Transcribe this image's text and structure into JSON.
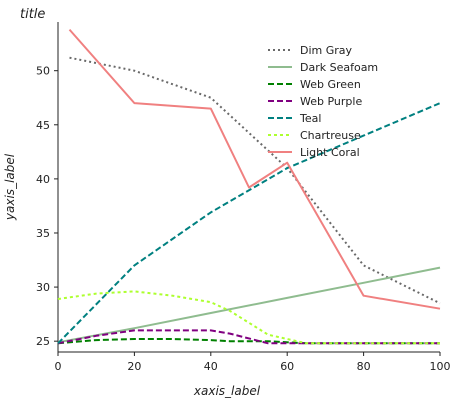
{
  "chart_data": {
    "type": "line",
    "title": "title",
    "xlabel": "xaxis_label",
    "ylabel": "yaxis_label",
    "xlim": [
      0,
      100
    ],
    "ylim": [
      24,
      54.5
    ],
    "xticks": [
      0,
      20,
      40,
      60,
      80,
      100
    ],
    "xtick_labels": [
      "0",
      "20",
      "40",
      "60",
      "80",
      "100"
    ],
    "yticks": [
      25,
      30,
      35,
      40,
      45,
      50
    ],
    "ytick_labels": [
      "25",
      "30",
      "35",
      "40",
      "45",
      "50"
    ],
    "grid": false,
    "legend_position": "top-right",
    "series": [
      {
        "name": "Dim Gray",
        "color": "#696969",
        "dash": "2,3",
        "width": 2,
        "x": [
          3,
          20,
          40,
          60,
          80,
          100
        ],
        "y": [
          51.2,
          50.0,
          47.5,
          41.0,
          32.0,
          28.5
        ]
      },
      {
        "name": "Dark Seafoam",
        "color": "#8fbc8f",
        "dash": "",
        "width": 2,
        "x": [
          0,
          20,
          40,
          60,
          80,
          100
        ],
        "y": [
          24.9,
          26.2,
          27.6,
          29.0,
          30.4,
          31.8
        ]
      },
      {
        "name": "Web Green",
        "color": "#008000",
        "dash": "6,3",
        "width": 2,
        "x": [
          0,
          10,
          20,
          30,
          40,
          45,
          55,
          65,
          75,
          100
        ],
        "y": [
          24.8,
          25.1,
          25.2,
          25.2,
          25.1,
          25.0,
          25.0,
          24.8,
          24.8,
          24.8
        ]
      },
      {
        "name": "Web Purple",
        "color": "#800080",
        "dash": "6,3",
        "width": 2,
        "x": [
          0,
          10,
          20,
          30,
          40,
          45,
          55,
          65,
          75,
          100
        ],
        "y": [
          24.8,
          25.5,
          26.0,
          26.0,
          26.0,
          25.7,
          24.8,
          24.8,
          24.8,
          24.8
        ]
      },
      {
        "name": "Teal",
        "color": "#008080",
        "dash": "6,3",
        "width": 2,
        "x": [
          0,
          20,
          40,
          60,
          80,
          100
        ],
        "y": [
          24.8,
          32.0,
          36.9,
          41.0,
          44.0,
          47.0
        ]
      },
      {
        "name": "Chartreuse",
        "color": "#adff2f",
        "dash": "3,3",
        "width": 2,
        "x": [
          0,
          10,
          20,
          30,
          40,
          45,
          55,
          65,
          75,
          100
        ],
        "y": [
          28.9,
          29.4,
          29.6,
          29.2,
          28.6,
          27.8,
          25.6,
          24.8,
          24.8,
          24.8
        ]
      },
      {
        "name": "Light Coral",
        "color": "#f08080",
        "dash": "",
        "width": 2,
        "x": [
          3,
          20,
          40,
          50,
          60,
          80,
          100
        ],
        "y": [
          53.8,
          47.0,
          46.5,
          39.2,
          41.5,
          29.2,
          28.0
        ]
      }
    ]
  }
}
